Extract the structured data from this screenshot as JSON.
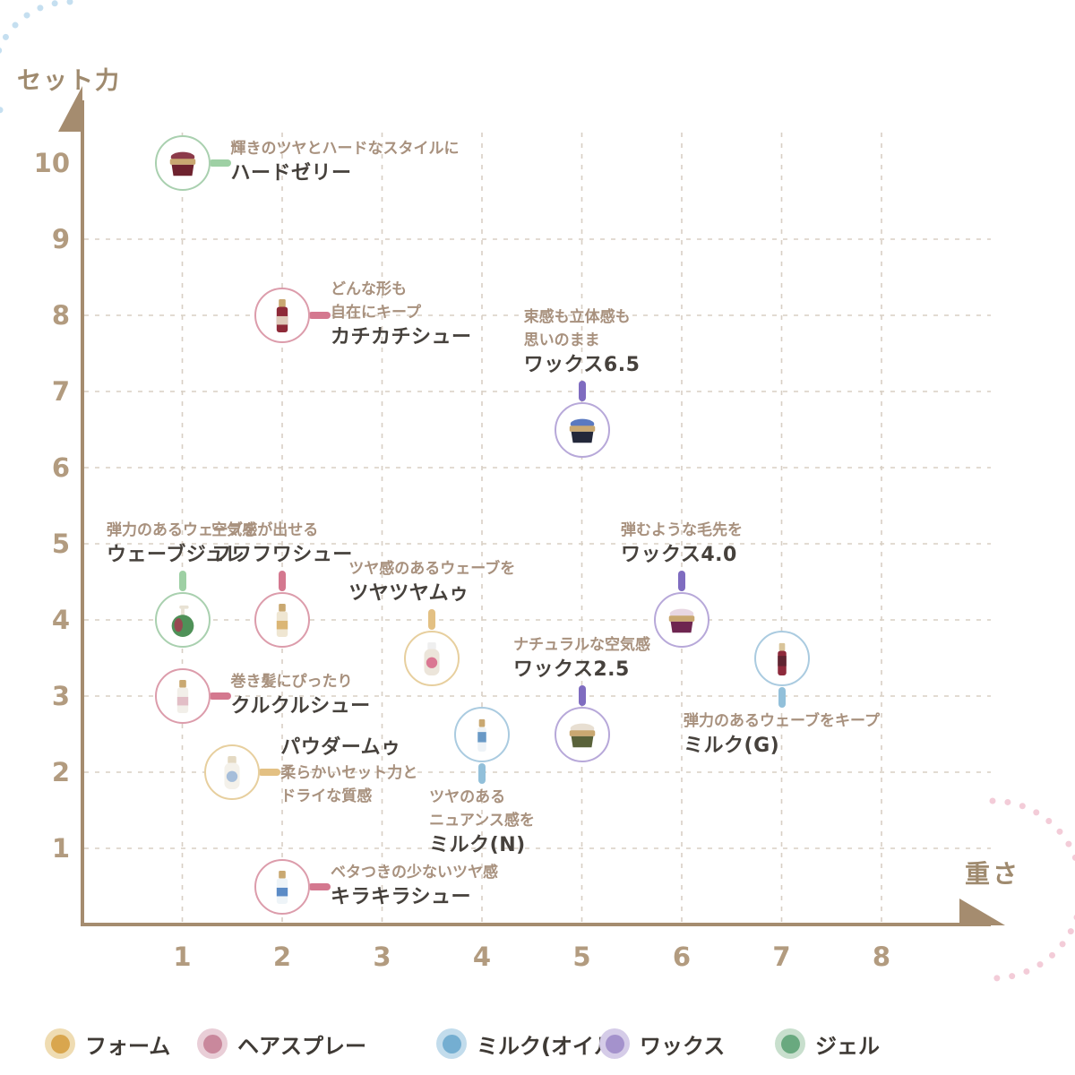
{
  "chart_data": {
    "type": "scatter",
    "title": "",
    "axes": {
      "x_label": "重さ",
      "y_label": "セット力",
      "x_ticks": [
        1,
        2,
        3,
        4,
        5,
        6,
        7,
        8
      ],
      "y_ticks": [
        1,
        2,
        3,
        4,
        5,
        6,
        7,
        8,
        9,
        10
      ],
      "xlim": [
        0,
        9
      ],
      "ylim": [
        0,
        10.8
      ],
      "grid": "dashed"
    },
    "legend_position": "bottom",
    "categories": [
      {
        "id": "foam",
        "label": "フォーム",
        "dot": "#d9a64e",
        "halo": "#efdcb2",
        "ring": "#e7cf9e",
        "connector": "#e3c083"
      },
      {
        "id": "spray",
        "label": "ヘアスプレー",
        "dot": "#c9889c",
        "halo": "#e9ced7",
        "ring": "#dc9cab",
        "connector": "#d4788f"
      },
      {
        "id": "milk",
        "label": "ミルク(オイル)",
        "dot": "#74aed1",
        "halo": "#c2dcec",
        "ring": "#aacbe0",
        "connector": "#92c0da"
      },
      {
        "id": "wax",
        "label": "ワックス",
        "dot": "#a492cc",
        "halo": "#d5cce8",
        "ring": "#b7a8d9",
        "connector": "#7f6cc0"
      },
      {
        "id": "gel",
        "label": "ジェル",
        "dot": "#69a97f",
        "halo": "#c8dfcd",
        "ring": "#a9d0af",
        "connector": "#9ed0a4"
      }
    ],
    "products": [
      {
        "id": "hard-jelly",
        "name": "ハードゼリー",
        "caption": [
          "輝きのツヤとハードなスタイルに"
        ],
        "x": 1,
        "y": 10,
        "category": "gel",
        "label_side": "right",
        "icon": {
          "type": "jar",
          "body": "#6e222e",
          "accent": "#8c3a4a",
          "cap": "#c9a871"
        }
      },
      {
        "id": "kachikachi-shoe",
        "name": "カチカチシュー",
        "caption": [
          "どんな形も",
          "自在にキープ"
        ],
        "x": 2,
        "y": 8,
        "category": "spray",
        "label_side": "right",
        "icon": {
          "type": "spray",
          "body": "#8e2a38",
          "accent": "#e8dcc8",
          "cap": "#c9a871"
        }
      },
      {
        "id": "wax-6-5",
        "name": "ワックス6.5",
        "caption": [
          "束感も立体感も",
          "思いのまま"
        ],
        "x": 5,
        "y": 6.5,
        "category": "wax",
        "label_side": "above",
        "icon": {
          "type": "jar",
          "body": "#23283a",
          "accent": "#5a79c0",
          "cap": "#c9a871"
        }
      },
      {
        "id": "wave-jule",
        "name": "ウェーブジュレ",
        "caption": [
          "弾力のあるウェーブを"
        ],
        "x": 1,
        "y": 4,
        "category": "gel",
        "label_side": "above",
        "icon": {
          "type": "pump",
          "body": "#4f9158",
          "accent": "#a33c50",
          "cap": "#e8e2d4"
        }
      },
      {
        "id": "fuwafuwa-shoe",
        "name": "フワフワシュー",
        "caption": [
          "空気感が出せる"
        ],
        "x": 2,
        "y": 4,
        "category": "spray",
        "label_side": "above",
        "icon": {
          "type": "spray",
          "body": "#efe6d2",
          "accent": "#d8b06a",
          "cap": "#c9a871"
        }
      },
      {
        "id": "tsuyatsuya-mu",
        "name": "ツヤツヤムゥ",
        "caption": [
          "ツヤ感のあるウェーブを"
        ],
        "x": 3.5,
        "y": 3.5,
        "category": "foam",
        "label_side": "above",
        "icon": {
          "type": "bottle",
          "body": "#ece5da",
          "accent": "#d86a8a",
          "cap": "#efefef"
        }
      },
      {
        "id": "wax-4-0",
        "name": "ワックス4.0",
        "caption": [
          "弾むような毛先を"
        ],
        "x": 6,
        "y": 4,
        "category": "wax",
        "label_side": "above",
        "icon": {
          "type": "jar",
          "body": "#6e2550",
          "accent": "#e8d7e2",
          "cap": "#c9a871"
        }
      },
      {
        "id": "milk-g",
        "name": "ミルク(G)",
        "caption": [
          "弾力のあるウェーブをキープ"
        ],
        "x": 7,
        "y": 3.5,
        "category": "milk",
        "label_side": "below",
        "icon": {
          "type": "tube",
          "body": "#8e2a3c",
          "accent": "#5a2430",
          "cap": "#d9c49a"
        }
      },
      {
        "id": "kurukuru-shoe",
        "name": "クルクルシュー",
        "caption": [
          "巻き髪にぴったり"
        ],
        "x": 1,
        "y": 3,
        "category": "spray",
        "label_side": "right",
        "icon": {
          "type": "spray",
          "body": "#f2efe9",
          "accent": "#e0b8c2",
          "cap": "#c9a871"
        }
      },
      {
        "id": "wax-2-5",
        "name": "ワックス2.5",
        "caption": [
          "ナチュラルな空気感"
        ],
        "x": 5,
        "y": 2.5,
        "category": "wax",
        "label_side": "above",
        "icon": {
          "type": "jar",
          "body": "#59623a",
          "accent": "#e8dfd2",
          "cap": "#c9a871"
        }
      },
      {
        "id": "milk-n",
        "name": "ミルク(N)",
        "caption": [
          "ツヤのある",
          "ニュアンス感を"
        ],
        "x": 4,
        "y": 2.5,
        "category": "milk",
        "label_side": "below",
        "icon": {
          "type": "tube",
          "body": "#eef3f7",
          "accent": "#5a8fc0",
          "cap": "#c9a871"
        }
      },
      {
        "id": "powder-mu",
        "name": "パウダームゥ",
        "caption": [
          "柔らかいセット力と",
          "ドライな質感"
        ],
        "x": 1.5,
        "y": 2,
        "category": "foam",
        "label_side": "right",
        "name_first": true,
        "icon": {
          "type": "bottle",
          "body": "#f4f1ea",
          "accent": "#9db8d8",
          "cap": "#e4d9c2"
        }
      },
      {
        "id": "kirakira-shoe",
        "name": "キラキラシュー",
        "caption": [
          "ベタつきの少ないツヤ感"
        ],
        "x": 2,
        "y": 0.5,
        "category": "spray",
        "label_side": "right",
        "icon": {
          "type": "spray",
          "body": "#eef4f8",
          "accent": "#4a7fc0",
          "cap": "#c9a871"
        }
      }
    ],
    "colors": {
      "axis": "#a58c6f",
      "grid": "#d8cfc4",
      "tick_label": "#b29b7f",
      "caption_text": "#a8917e",
      "name_text": "#46413c",
      "y_bubble_fill": "#daecf6",
      "y_bubble_dots": "#c5dff0",
      "x_bubble_fill": "#fce5ea",
      "x_bubble_dots": "#f3ccd8",
      "bubble_text": "#9f8a6e",
      "legend_text": "#3f3a35"
    }
  }
}
